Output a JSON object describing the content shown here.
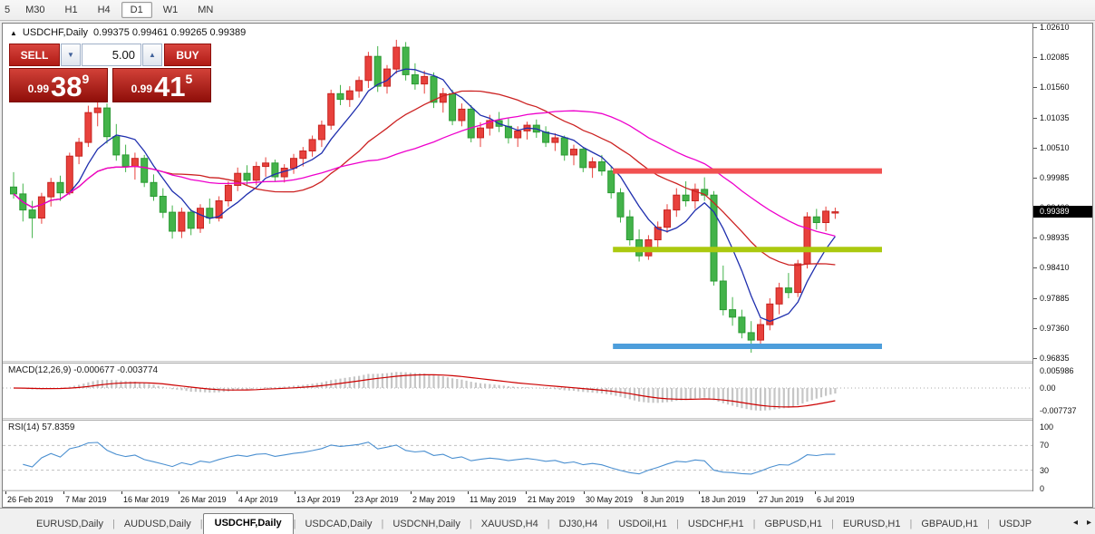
{
  "toolbar": {
    "timeframes": [
      {
        "label": "5",
        "active": false
      },
      {
        "label": "M30",
        "active": false
      },
      {
        "label": "H1",
        "active": false
      },
      {
        "label": "H4",
        "active": false
      },
      {
        "label": "D1",
        "active": true
      },
      {
        "label": "W1",
        "active": false
      },
      {
        "label": "MN",
        "active": false
      }
    ]
  },
  "chart_window": {
    "title_symbol": "USDCHF,Daily",
    "title_ohlc": "0.99375 0.99461 0.99265 0.99389",
    "trade_panel": {
      "sell_label": "SELL",
      "buy_label": "BUY",
      "volume": "5.00",
      "sell_price": {
        "prefix": "0.99",
        "big": "38",
        "sup": "9"
      },
      "buy_price": {
        "prefix": "0.99",
        "big": "41",
        "sup": "5"
      }
    },
    "current_price": "0.99389"
  },
  "chart_data": {
    "type": "candlestick",
    "symbol": "USDCHF",
    "timeframe": "Daily",
    "title": "USDCHF,Daily",
    "current_ohlc": {
      "open": 0.99375,
      "high": 0.99461,
      "low": 0.99265,
      "close": 0.99389
    },
    "current_price": 0.99389,
    "price_ticks": [
      1.0261,
      1.02085,
      1.0156,
      1.01035,
      1.0051,
      0.99985,
      0.9946,
      0.98935,
      0.9841,
      0.97885,
      0.9736,
      0.96835
    ],
    "date_ticks": [
      "26 Feb 2019",
      "7 Mar 2019",
      "16 Mar 2019",
      "26 Mar 2019",
      "4 Apr 2019",
      "13 Apr 2019",
      "23 Apr 2019",
      "2 May 2019",
      "11 May 2019",
      "21 May 2019",
      "30 May 2019",
      "8 Jun 2019",
      "18 Jun 2019",
      "27 Jun 2019",
      "6 Jul 2019"
    ],
    "candles": [
      [
        0.9982,
        1.0008,
        0.9962,
        0.997
      ],
      [
        0.997,
        0.9988,
        0.9922,
        0.9942
      ],
      [
        0.9942,
        0.9958,
        0.9893,
        0.9928
      ],
      [
        0.9928,
        0.9972,
        0.9918,
        0.9965
      ],
      [
        0.9965,
        0.9998,
        0.9948,
        0.999
      ],
      [
        0.999,
        1.0002,
        0.9958,
        0.9972
      ],
      [
        0.9972,
        1.0042,
        0.9968,
        1.0036
      ],
      [
        1.0036,
        1.0068,
        1.0022,
        1.006
      ],
      [
        1.006,
        1.0124,
        1.0052,
        1.0112
      ],
      [
        1.0112,
        1.0135,
        1.0088,
        1.012
      ],
      [
        1.012,
        1.0128,
        1.0058,
        1.007
      ],
      [
        1.007,
        1.0092,
        1.0028,
        1.0038
      ],
      [
        1.0038,
        1.0056,
        1.0008,
        1.0018
      ],
      [
        1.0018,
        1.0042,
        0.9995,
        1.0032
      ],
      [
        1.0032,
        1.0038,
        0.9982,
        0.999
      ],
      [
        0.999,
        1.0004,
        0.9958,
        0.9966
      ],
      [
        0.9966,
        0.998,
        0.9928,
        0.9938
      ],
      [
        0.9938,
        0.995,
        0.9892,
        0.9905
      ],
      [
        0.9905,
        0.9946,
        0.9893,
        0.9938
      ],
      [
        0.9938,
        0.9944,
        0.9898,
        0.991
      ],
      [
        0.991,
        0.9952,
        0.9902,
        0.9945
      ],
      [
        0.9945,
        0.9962,
        0.9918,
        0.9928
      ],
      [
        0.9928,
        0.9966,
        0.9922,
        0.9958
      ],
      [
        0.9958,
        0.9992,
        0.9948,
        0.9985
      ],
      [
        0.9985,
        1.0016,
        0.9975,
        1.0006
      ],
      [
        1.0006,
        1.002,
        0.9984,
        0.9994
      ],
      [
        0.9994,
        1.0026,
        0.9985,
        1.0018
      ],
      [
        1.0018,
        1.0034,
        1.0,
        1.0024
      ],
      [
        1.0024,
        1.003,
        0.9992,
        1.0
      ],
      [
        1.0,
        1.0022,
        0.999,
        1.0015
      ],
      [
        1.0015,
        1.004,
        1.0005,
        1.0032
      ],
      [
        1.0032,
        1.0052,
        1.0018,
        1.0045
      ],
      [
        1.0045,
        1.0072,
        1.0035,
        1.0065
      ],
      [
        1.0065,
        1.0098,
        1.0052,
        1.009
      ],
      [
        1.009,
        1.0152,
        1.0082,
        1.0145
      ],
      [
        1.0145,
        1.016,
        1.0125,
        1.0135
      ],
      [
        1.0135,
        1.0158,
        1.0122,
        1.015
      ],
      [
        1.015,
        1.0175,
        1.0138,
        1.0168
      ],
      [
        1.0168,
        1.0218,
        1.0155,
        1.021
      ],
      [
        1.021,
        1.0228,
        1.0148,
        1.0158
      ],
      [
        1.0158,
        1.0195,
        1.0145,
        1.0188
      ],
      [
        1.0188,
        1.0239,
        1.018,
        1.0226
      ],
      [
        1.0226,
        1.0235,
        1.0168,
        1.0178
      ],
      [
        1.0178,
        1.0198,
        1.0152,
        1.0162
      ],
      [
        1.0162,
        1.0185,
        1.0145,
        1.0175
      ],
      [
        1.0175,
        1.0182,
        1.012,
        1.013
      ],
      [
        1.013,
        1.0155,
        1.0112,
        1.0145
      ],
      [
        1.0145,
        1.0152,
        1.009,
        1.0098
      ],
      [
        1.0098,
        1.0128,
        1.0088,
        1.0118
      ],
      [
        1.0118,
        1.0125,
        1.006,
        1.0068
      ],
      [
        1.0068,
        1.0095,
        1.0052,
        1.0085
      ],
      [
        1.0085,
        1.0108,
        1.0072,
        1.0098
      ],
      [
        1.0098,
        1.0113,
        1.0078,
        1.0088
      ],
      [
        1.0088,
        1.0102,
        1.0058,
        1.0068
      ],
      [
        1.0068,
        1.0088,
        1.0052,
        1.008
      ],
      [
        1.008,
        1.0096,
        1.0065,
        1.009
      ],
      [
        1.009,
        1.01,
        1.0068,
        1.0078
      ],
      [
        1.0078,
        1.0088,
        1.0052,
        1.006
      ],
      [
        1.006,
        1.0076,
        1.0045,
        1.0068
      ],
      [
        1.0068,
        1.0072,
        1.0028,
        1.0038
      ],
      [
        1.0038,
        1.0056,
        1.002,
        1.0048
      ],
      [
        1.0048,
        1.0052,
        1.0008,
        1.0016
      ],
      [
        1.0016,
        1.0034,
        0.9998,
        1.0026
      ],
      [
        1.0026,
        1.0038,
        1.0002,
        1.001
      ],
      [
        1.001,
        1.0018,
        0.9962,
        0.9972
      ],
      [
        0.9972,
        0.998,
        0.992,
        0.993
      ],
      [
        0.993,
        0.9942,
        0.988,
        0.989
      ],
      [
        0.989,
        0.9908,
        0.9852,
        0.9862
      ],
      [
        0.9862,
        0.9898,
        0.9855,
        0.989
      ],
      [
        0.989,
        0.9922,
        0.9875,
        0.9912
      ],
      [
        0.9912,
        0.9952,
        0.9902,
        0.9942
      ],
      [
        0.9942,
        0.998,
        0.993,
        0.9968
      ],
      [
        0.9968,
        0.9992,
        0.9948,
        0.9958
      ],
      [
        0.9958,
        0.9988,
        0.9944,
        0.9978
      ],
      [
        0.9978,
        0.9999,
        0.9958,
        0.9968
      ],
      [
        0.9968,
        0.9975,
        0.981,
        0.9818
      ],
      [
        0.9818,
        0.9845,
        0.9758,
        0.9768
      ],
      [
        0.9768,
        0.979,
        0.974,
        0.9755
      ],
      [
        0.9755,
        0.9768,
        0.9718,
        0.9728
      ],
      [
        0.9728,
        0.9748,
        0.9693,
        0.9715
      ],
      [
        0.9715,
        0.9752,
        0.9702,
        0.9742
      ],
      [
        0.9742,
        0.9788,
        0.9732,
        0.9778
      ],
      [
        0.9778,
        0.9815,
        0.976,
        0.9806
      ],
      [
        0.9806,
        0.9832,
        0.9788,
        0.9798
      ],
      [
        0.9798,
        0.9855,
        0.979,
        0.9848
      ],
      [
        0.9848,
        0.9938,
        0.984,
        0.993
      ],
      [
        0.993,
        0.9944,
        0.9908,
        0.992
      ],
      [
        0.992,
        0.9948,
        0.9905,
        0.994
      ],
      [
        0.99375,
        0.99461,
        0.99265,
        0.99389
      ]
    ],
    "colors": {
      "bull": "#e8413c",
      "bull_border": "#c62420",
      "bear": "#43b34a",
      "bear_border": "#2b9a33"
    },
    "moving_averages": [
      {
        "name": "fast-ma",
        "period": 6,
        "color": "#1f2fae"
      },
      {
        "name": "medium-ma",
        "period": 17,
        "color": "#cc2222"
      },
      {
        "name": "slow-ma",
        "period": 30,
        "color": "#ee00cc"
      }
    ],
    "levels": [
      {
        "name": "resistance-line",
        "price": 1.001,
        "color": "#f15151"
      },
      {
        "name": "middle-support-line",
        "price": 0.9873,
        "color": "#abc90f"
      },
      {
        "name": "lower-support-line",
        "price": 0.9704,
        "color": "#4d9edb"
      }
    ],
    "macd": {
      "label": "MACD(12,26,9)",
      "value_main": "-0.000677",
      "value_signal": "-0.003774",
      "fast": 12,
      "slow": 26,
      "signal": 9,
      "axis": [
        {
          "label": "0.005986",
          "value": 0.005986
        },
        {
          "label": "0.00",
          "value": 0
        },
        {
          "label": "-0.007737",
          "value": -0.007737
        }
      ],
      "histogram_color": "#c6c6c6",
      "signal_color": "#cc0000"
    },
    "rsi": {
      "label": "RSI(14)",
      "value": "57.8359",
      "period": 14,
      "axis": [
        100,
        70,
        30,
        0
      ],
      "levels": [
        70,
        30
      ],
      "line_color": "#4a8fd0"
    }
  },
  "bottom_tabs": {
    "tabs": [
      {
        "label": "EURUSD,Daily",
        "active": false
      },
      {
        "label": "AUDUSD,Daily",
        "active": false
      },
      {
        "label": "USDCHF,Daily",
        "active": true
      },
      {
        "label": "USDCAD,Daily",
        "active": false
      },
      {
        "label": "USDCNH,Daily",
        "active": false
      },
      {
        "label": "XAUUSD,H4",
        "active": false
      },
      {
        "label": "DJ30,H4",
        "active": false
      },
      {
        "label": "USDOil,H1",
        "active": false
      },
      {
        "label": "USDCHF,H1",
        "active": false
      },
      {
        "label": "GBPUSD,H1",
        "active": false
      },
      {
        "label": "EURUSD,H1",
        "active": false
      },
      {
        "label": "GBPAUD,H1",
        "active": false
      },
      {
        "label": "USDJP",
        "active": false
      }
    ],
    "scroll_left": "◂",
    "scroll_right": "▸"
  }
}
